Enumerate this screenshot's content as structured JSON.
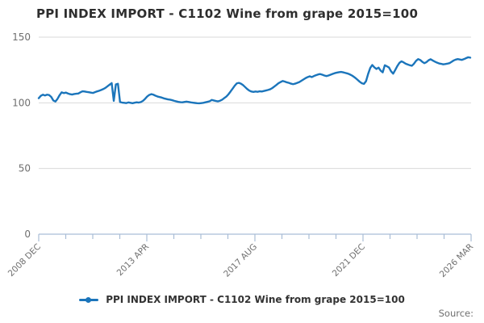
{
  "title": "PPI INDEX IMPORT - C1102 Wine from grape 2015=100",
  "legend": {
    "marker": "line-dot-marker",
    "label": "PPI INDEX IMPORT - C1102 Wine from grape 2015=100"
  },
  "source_label": "Source:",
  "colors": {
    "line": "#1b75bb",
    "grid": "#d9d9d9",
    "axis": "#a9bdd6",
    "title_text": "#2e2e2e",
    "tick_text": "#6f6f6f",
    "legend_text": "#333333",
    "background": "#ffffff"
  },
  "chart_data": {
    "type": "line",
    "title": "PPI INDEX IMPORT - C1102 Wine from grape 2015=100",
    "series_name": "PPI INDEX IMPORT - C1102 Wine from grape 2015=100",
    "frequency": "monthly",
    "x_start": "2008 DEC",
    "x_end": "2026 MAR",
    "x_tick_labels": [
      "2008 DEC",
      "2013 APR",
      "2017 AUG",
      "2021 DEC",
      "2026 MAR"
    ],
    "y_tick_labels": [
      "0",
      "50",
      "100",
      "150"
    ],
    "ylim": [
      0,
      150
    ],
    "y_gridlines": [
      50,
      100,
      150
    ],
    "minor_ticks_between_major": 3,
    "legend_position": "bottom",
    "grid": "horizontal-only",
    "values": [
      103.5,
      105.3,
      106.2,
      105.6,
      106.2,
      105.9,
      104.5,
      101.8,
      101.0,
      103.0,
      105.8,
      108.0,
      107.4,
      107.8,
      107.1,
      106.6,
      106.3,
      106.7,
      106.9,
      107.1,
      108.0,
      108.8,
      108.6,
      108.3,
      108.1,
      107.8,
      107.5,
      108.1,
      108.7,
      109.2,
      109.8,
      110.5,
      111.4,
      112.6,
      113.8,
      115.0,
      101.5,
      114.0,
      114.5,
      100.6,
      100.2,
      100.0,
      99.8,
      100.3,
      100.0,
      99.7,
      100.1,
      100.4,
      100.2,
      100.6,
      101.5,
      103.0,
      104.8,
      106.0,
      106.6,
      106.2,
      105.4,
      104.8,
      104.4,
      104.0,
      103.4,
      103.0,
      102.6,
      102.4,
      102.0,
      101.5,
      101.1,
      100.7,
      100.5,
      100.4,
      100.7,
      100.9,
      100.6,
      100.3,
      100.1,
      99.9,
      99.7,
      99.6,
      99.8,
      100.0,
      100.4,
      100.8,
      101.2,
      102.2,
      101.8,
      101.4,
      101.1,
      101.6,
      102.4,
      103.6,
      104.8,
      106.5,
      108.6,
      110.8,
      113.0,
      114.8,
      115.2,
      114.6,
      113.5,
      112.0,
      110.5,
      109.3,
      108.6,
      108.3,
      108.6,
      108.4,
      108.8,
      108.6,
      109.0,
      109.4,
      109.8,
      110.3,
      111.2,
      112.4,
      113.6,
      114.9,
      115.8,
      116.6,
      116.2,
      115.6,
      115.2,
      114.6,
      114.2,
      114.6,
      115.2,
      115.8,
      116.8,
      117.8,
      118.8,
      119.6,
      120.2,
      119.6,
      120.4,
      121.0,
      121.6,
      121.9,
      121.4,
      120.8,
      120.4,
      120.8,
      121.4,
      122.0,
      122.6,
      123.0,
      123.3,
      123.5,
      123.2,
      122.8,
      122.4,
      121.8,
      121.0,
      120.0,
      118.8,
      117.4,
      116.0,
      114.9,
      114.4,
      116.5,
      122.0,
      126.5,
      128.8,
      127.0,
      125.8,
      126.8,
      124.5,
      123.2,
      128.6,
      127.8,
      126.9,
      124.0,
      122.2,
      125.0,
      128.0,
      130.4,
      131.6,
      130.8,
      129.8,
      129.2,
      128.6,
      128.2,
      129.8,
      132.0,
      133.3,
      132.6,
      131.2,
      130.2,
      131.0,
      132.4,
      133.2,
      132.2,
      131.4,
      130.6,
      130.0,
      129.7,
      129.3,
      129.5,
      129.8,
      130.2,
      131.2,
      132.2,
      132.9,
      133.3,
      133.0,
      132.7,
      133.3,
      134.0,
      134.7,
      134.4
    ]
  }
}
